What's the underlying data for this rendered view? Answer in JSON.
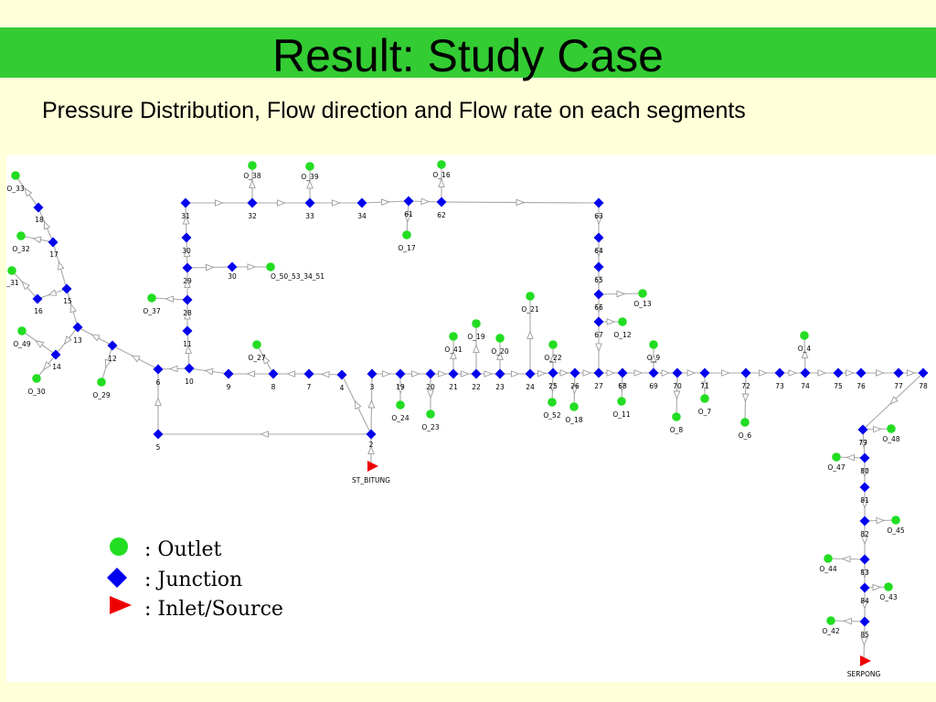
{
  "slide": {
    "title": "Result: Study Case",
    "subtitle": "Pressure Distribution, Flow direction and Flow rate on each segments"
  },
  "colors": {
    "title_bar": "#33CC33",
    "background": "#FFFFD9",
    "outlet": "#22DD22",
    "junction": "#0000EE",
    "inlet": "#EE0000"
  },
  "legend": [
    {
      "shape": "outlet",
      "label": ": Outlet"
    },
    {
      "shape": "junction",
      "label": ": Junction"
    },
    {
      "shape": "inlet",
      "label": ": Inlet/Source"
    }
  ],
  "nodes": [
    {
      "id": "j2",
      "t": "J",
      "label": "2"
    },
    {
      "id": "j3",
      "t": "J",
      "label": "3"
    },
    {
      "id": "j4",
      "t": "J",
      "label": "4"
    },
    {
      "id": "j5",
      "t": "J",
      "label": "5"
    },
    {
      "id": "j6",
      "t": "J",
      "label": "6"
    },
    {
      "id": "j7",
      "t": "J",
      "label": "7"
    },
    {
      "id": "j8",
      "t": "J",
      "label": "8"
    },
    {
      "id": "j9",
      "t": "J",
      "label": "9"
    },
    {
      "id": "j10",
      "t": "J",
      "label": "10"
    },
    {
      "id": "j11",
      "t": "J",
      "label": "11"
    },
    {
      "id": "j12",
      "t": "J",
      "label": "12"
    },
    {
      "id": "j13",
      "t": "J",
      "label": "13"
    },
    {
      "id": "j14",
      "t": "J",
      "label": "14"
    },
    {
      "id": "j15",
      "t": "J",
      "label": "15"
    },
    {
      "id": "j16",
      "t": "J",
      "label": "16"
    },
    {
      "id": "j17",
      "t": "J",
      "label": "17"
    },
    {
      "id": "j18",
      "t": "J",
      "label": "18"
    },
    {
      "id": "j19",
      "t": "J",
      "label": "19"
    },
    {
      "id": "j20",
      "t": "J",
      "label": "20"
    },
    {
      "id": "j21",
      "t": "J",
      "label": "21"
    },
    {
      "id": "j22",
      "t": "J",
      "label": "22"
    },
    {
      "id": "j23",
      "t": "J",
      "label": "23"
    },
    {
      "id": "j24",
      "t": "J",
      "label": "24"
    },
    {
      "id": "j25",
      "t": "J",
      "label": "25"
    },
    {
      "id": "j26",
      "t": "J",
      "label": "26"
    },
    {
      "id": "j27",
      "t": "J",
      "label": "27"
    },
    {
      "id": "j28",
      "t": "J",
      "label": "28"
    },
    {
      "id": "j29",
      "t": "J",
      "label": "29"
    },
    {
      "id": "j30",
      "t": "J",
      "label": "30"
    },
    {
      "id": "j30b",
      "t": "J",
      "label": "30"
    },
    {
      "id": "j31",
      "t": "J",
      "label": "31"
    },
    {
      "id": "j32",
      "t": "J",
      "label": "32"
    },
    {
      "id": "j33",
      "t": "J",
      "label": "33"
    },
    {
      "id": "j34",
      "t": "J",
      "label": "34"
    },
    {
      "id": "j61",
      "t": "J",
      "label": "61"
    },
    {
      "id": "j62",
      "t": "J",
      "label": "62"
    },
    {
      "id": "j63",
      "t": "J",
      "label": "63"
    },
    {
      "id": "j64",
      "t": "J",
      "label": "64"
    },
    {
      "id": "j65",
      "t": "J",
      "label": "65"
    },
    {
      "id": "j66",
      "t": "J",
      "label": "66"
    },
    {
      "id": "j67",
      "t": "J",
      "label": "67"
    },
    {
      "id": "j68",
      "t": "J",
      "label": "68"
    },
    {
      "id": "j69",
      "t": "J",
      "label": "69"
    },
    {
      "id": "j70",
      "t": "J",
      "label": "70"
    },
    {
      "id": "j71",
      "t": "J",
      "label": "71"
    },
    {
      "id": "j72",
      "t": "J",
      "label": "72"
    },
    {
      "id": "j73",
      "t": "J",
      "label": "73"
    },
    {
      "id": "j74",
      "t": "J",
      "label": "74"
    },
    {
      "id": "j75",
      "t": "J",
      "label": "75"
    },
    {
      "id": "j76",
      "t": "J",
      "label": "76"
    },
    {
      "id": "j77",
      "t": "J",
      "label": "77"
    },
    {
      "id": "j78",
      "t": "J",
      "label": "78"
    },
    {
      "id": "j79",
      "t": "J",
      "label": "79"
    },
    {
      "id": "j80",
      "t": "J",
      "label": "80"
    },
    {
      "id": "j81",
      "t": "J",
      "label": "81"
    },
    {
      "id": "j82",
      "t": "J",
      "label": "82"
    },
    {
      "id": "j83",
      "t": "J",
      "label": "83"
    },
    {
      "id": "j84",
      "t": "J",
      "label": "84"
    },
    {
      "id": "j85",
      "t": "J",
      "label": "85"
    },
    {
      "id": "o33",
      "t": "O",
      "label": "O_33"
    },
    {
      "id": "o32",
      "t": "O",
      "label": "O_32"
    },
    {
      "id": "o31",
      "t": "O",
      "label": "_31"
    },
    {
      "id": "o49",
      "t": "O",
      "label": "O_49"
    },
    {
      "id": "o30",
      "t": "O",
      "label": "O_30"
    },
    {
      "id": "o29",
      "t": "O",
      "label": "O_29"
    },
    {
      "id": "o37",
      "t": "O",
      "label": "O_37"
    },
    {
      "id": "o27",
      "t": "O",
      "label": "O_27"
    },
    {
      "id": "o38",
      "t": "O",
      "label": "O_38"
    },
    {
      "id": "o39",
      "t": "O",
      "label": "O_39"
    },
    {
      "id": "o16",
      "t": "O",
      "label": "O_16"
    },
    {
      "id": "o17",
      "t": "O",
      "label": "O_17"
    },
    {
      "id": "o50",
      "t": "O",
      "label": "O_50_53_34_51"
    },
    {
      "id": "o24",
      "t": "O",
      "label": "O_24"
    },
    {
      "id": "o23",
      "t": "O",
      "label": "O_23"
    },
    {
      "id": "o41",
      "t": "O",
      "label": "O_41"
    },
    {
      "id": "o19",
      "t": "O",
      "label": "O_19"
    },
    {
      "id": "o20",
      "t": "O",
      "label": "O_20"
    },
    {
      "id": "o21",
      "t": "O",
      "label": "O_21"
    },
    {
      "id": "o22",
      "t": "O",
      "label": "O_22"
    },
    {
      "id": "o52",
      "t": "O",
      "label": "O_52"
    },
    {
      "id": "o18",
      "t": "O",
      "label": "O_18"
    },
    {
      "id": "o13",
      "t": "O",
      "label": "O_13"
    },
    {
      "id": "o12",
      "t": "O",
      "label": "O_12"
    },
    {
      "id": "o11",
      "t": "O",
      "label": "O_11"
    },
    {
      "id": "o9",
      "t": "O",
      "label": "O_9"
    },
    {
      "id": "o8",
      "t": "O",
      "label": "O_8"
    },
    {
      "id": "o7",
      "t": "O",
      "label": "O_7"
    },
    {
      "id": "o6",
      "t": "O",
      "label": "O_6"
    },
    {
      "id": "o4",
      "t": "O",
      "label": "O_4"
    },
    {
      "id": "o48",
      "t": "O",
      "label": "O_48"
    },
    {
      "id": "o47",
      "t": "O",
      "label": "O_47"
    },
    {
      "id": "o45",
      "t": "O",
      "label": "O_45"
    },
    {
      "id": "o44",
      "t": "O",
      "label": "O_44"
    },
    {
      "id": "o43",
      "t": "O",
      "label": "O_43"
    },
    {
      "id": "o42",
      "t": "O",
      "label": "O_42"
    },
    {
      "id": "stb",
      "t": "S",
      "label": "ST_BITUNG"
    },
    {
      "id": "srp",
      "t": "S",
      "label": "SERPONG"
    }
  ],
  "pipes": [
    [
      "stb",
      "j2"
    ],
    [
      "j2",
      "j3"
    ],
    [
      "j2",
      "j4"
    ],
    [
      "j2",
      "j5"
    ],
    [
      "j5",
      "j6"
    ],
    [
      "j3",
      "j19"
    ],
    [
      "j4",
      "j7"
    ],
    [
      "j7",
      "j8"
    ],
    [
      "j8",
      "j9"
    ],
    [
      "j9",
      "j10"
    ],
    [
      "j10",
      "j6"
    ],
    [
      "j10",
      "j11"
    ],
    [
      "j11",
      "j28"
    ],
    [
      "j28",
      "j29"
    ],
    [
      "j29",
      "j30"
    ],
    [
      "j30",
      "j31"
    ],
    [
      "j31",
      "j32"
    ],
    [
      "j32",
      "j33"
    ],
    [
      "j33",
      "j34"
    ],
    [
      "j34",
      "j61"
    ],
    [
      "j61",
      "j62"
    ],
    [
      "j62",
      "j63"
    ],
    [
      "j63",
      "j64"
    ],
    [
      "j64",
      "j65"
    ],
    [
      "j65",
      "j66"
    ],
    [
      "j66",
      "j67"
    ],
    [
      "j67",
      "j27"
    ],
    [
      "j6",
      "j12"
    ],
    [
      "j12",
      "j13"
    ],
    [
      "j13",
      "j14"
    ],
    [
      "j13",
      "j15"
    ],
    [
      "j15",
      "j16"
    ],
    [
      "j15",
      "j17"
    ],
    [
      "j17",
      "j18"
    ],
    [
      "j19",
      "j20"
    ],
    [
      "j20",
      "j21"
    ],
    [
      "j21",
      "j22"
    ],
    [
      "j22",
      "j23"
    ],
    [
      "j23",
      "j24"
    ],
    [
      "j24",
      "j25"
    ],
    [
      "j25",
      "j26"
    ],
    [
      "j26",
      "j27"
    ],
    [
      "j27",
      "j68"
    ],
    [
      "j68",
      "j69"
    ],
    [
      "j69",
      "j70"
    ],
    [
      "j70",
      "j71"
    ],
    [
      "j71",
      "j72"
    ],
    [
      "j72",
      "j73"
    ],
    [
      "j73",
      "j74"
    ],
    [
      "j74",
      "j75"
    ],
    [
      "j75",
      "j76"
    ],
    [
      "j76",
      "j77"
    ],
    [
      "j77",
      "j78"
    ],
    [
      "j78",
      "j79"
    ],
    [
      "j79",
      "j80"
    ],
    [
      "j80",
      "j81"
    ],
    [
      "j81",
      "j82"
    ],
    [
      "j82",
      "j83"
    ],
    [
      "j83",
      "j84"
    ],
    [
      "j84",
      "j85"
    ],
    [
      "j85",
      "srp"
    ],
    [
      "j29",
      "j30b"
    ],
    [
      "j30b",
      "o50"
    ],
    [
      "j18",
      "o33"
    ],
    [
      "j17",
      "o32"
    ],
    [
      "j16",
      "o31"
    ],
    [
      "j14",
      "o49"
    ],
    [
      "j14",
      "o30"
    ],
    [
      "j12",
      "o29"
    ],
    [
      "j28",
      "o37"
    ],
    [
      "j8",
      "o27"
    ],
    [
      "j32",
      "o38"
    ],
    [
      "j33",
      "o39"
    ],
    [
      "j62",
      "o16"
    ],
    [
      "j61",
      "o17"
    ],
    [
      "j19",
      "o24"
    ],
    [
      "j20",
      "o23"
    ],
    [
      "j21",
      "o41"
    ],
    [
      "j22",
      "o19"
    ],
    [
      "j23",
      "o20"
    ],
    [
      "j24",
      "o21"
    ],
    [
      "j25",
      "o22"
    ],
    [
      "j25",
      "o52"
    ],
    [
      "j26",
      "o18"
    ],
    [
      "j66",
      "o13"
    ],
    [
      "j67",
      "o12"
    ],
    [
      "j68",
      "o11"
    ],
    [
      "j69",
      "o9"
    ],
    [
      "j70",
      "o8"
    ],
    [
      "j71",
      "o7"
    ],
    [
      "j72",
      "o6"
    ],
    [
      "j74",
      "o4"
    ],
    [
      "j79",
      "o48"
    ],
    [
      "j80",
      "o47"
    ],
    [
      "j82",
      "o45"
    ],
    [
      "j83",
      "o44"
    ],
    [
      "j84",
      "o43"
    ],
    [
      "j85",
      "o42"
    ]
  ]
}
